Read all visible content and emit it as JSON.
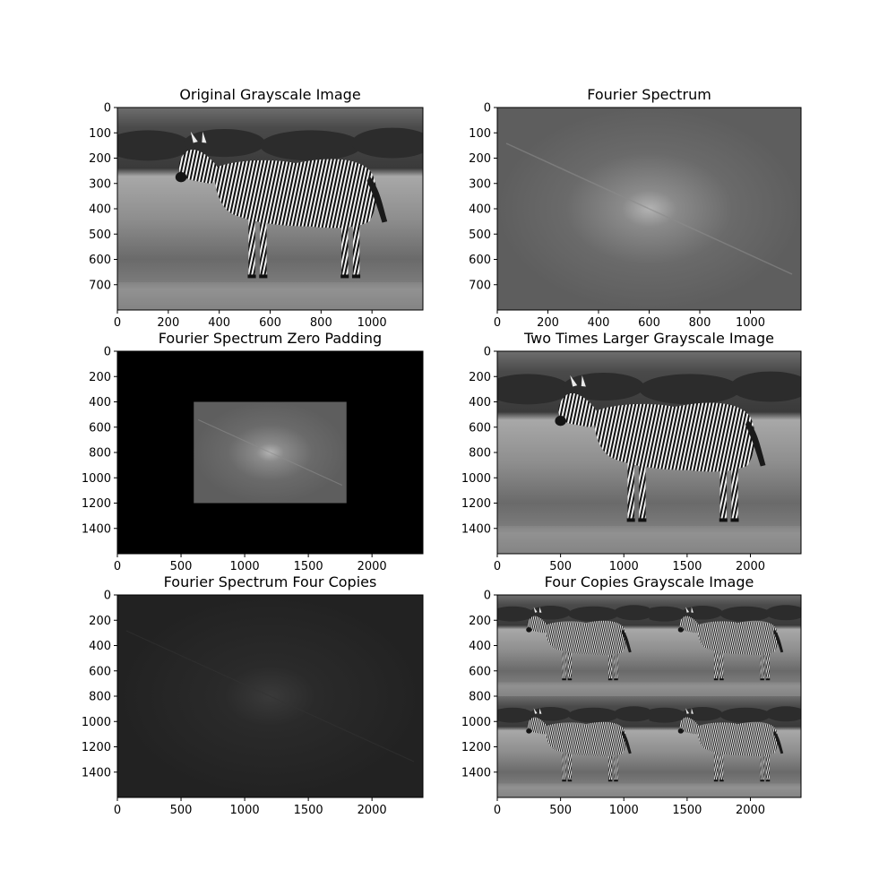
{
  "chart_data": [
    {
      "type": "image",
      "title": "Original Grayscale Image",
      "content": "zebra",
      "xlim": [
        0,
        1200
      ],
      "ylim": [
        800,
        0
      ],
      "xticks": [
        0,
        200,
        400,
        600,
        800,
        1000
      ],
      "yticks": [
        0,
        100,
        200,
        300,
        400,
        500,
        600,
        700
      ]
    },
    {
      "type": "image",
      "title": "Fourier Spectrum",
      "content": "spectrum",
      "xlim": [
        0,
        1200
      ],
      "ylim": [
        800,
        0
      ],
      "xticks": [
        0,
        200,
        400,
        600,
        800,
        1000
      ],
      "yticks": [
        0,
        100,
        200,
        300,
        400,
        500,
        600,
        700
      ]
    },
    {
      "type": "image",
      "title": "Fourier Spectrum Zero Padding",
      "content": "spectrum-padded",
      "xlim": [
        0,
        2400
      ],
      "ylim": [
        1600,
        0
      ],
      "xticks": [
        0,
        500,
        1000,
        1500,
        2000
      ],
      "yticks": [
        0,
        200,
        400,
        600,
        800,
        1000,
        1200,
        1400
      ],
      "inset_extent": {
        "x": [
          600,
          1800
        ],
        "y": [
          400,
          1200
        ]
      }
    },
    {
      "type": "image",
      "title": "Two Times Larger Grayscale Image",
      "content": "zebra",
      "xlim": [
        0,
        2400
      ],
      "ylim": [
        1600,
        0
      ],
      "xticks": [
        0,
        500,
        1000,
        1500,
        2000
      ],
      "yticks": [
        0,
        200,
        400,
        600,
        800,
        1000,
        1200,
        1400
      ]
    },
    {
      "type": "image",
      "title": "Fourier Spectrum Four Copies",
      "content": "spectrum-dark",
      "xlim": [
        0,
        2400
      ],
      "ylim": [
        1600,
        0
      ],
      "xticks": [
        0,
        500,
        1000,
        1500,
        2000
      ],
      "yticks": [
        0,
        200,
        400,
        600,
        800,
        1000,
        1200,
        1400
      ]
    },
    {
      "type": "image",
      "title": "Four Copies Grayscale Image",
      "content": "zebra-tiled",
      "tiles": [
        2,
        2
      ],
      "xlim": [
        0,
        2400
      ],
      "ylim": [
        1600,
        0
      ],
      "xticks": [
        0,
        500,
        1000,
        1500,
        2000
      ],
      "yticks": [
        0,
        200,
        400,
        600,
        800,
        1000,
        1200,
        1400
      ]
    }
  ]
}
